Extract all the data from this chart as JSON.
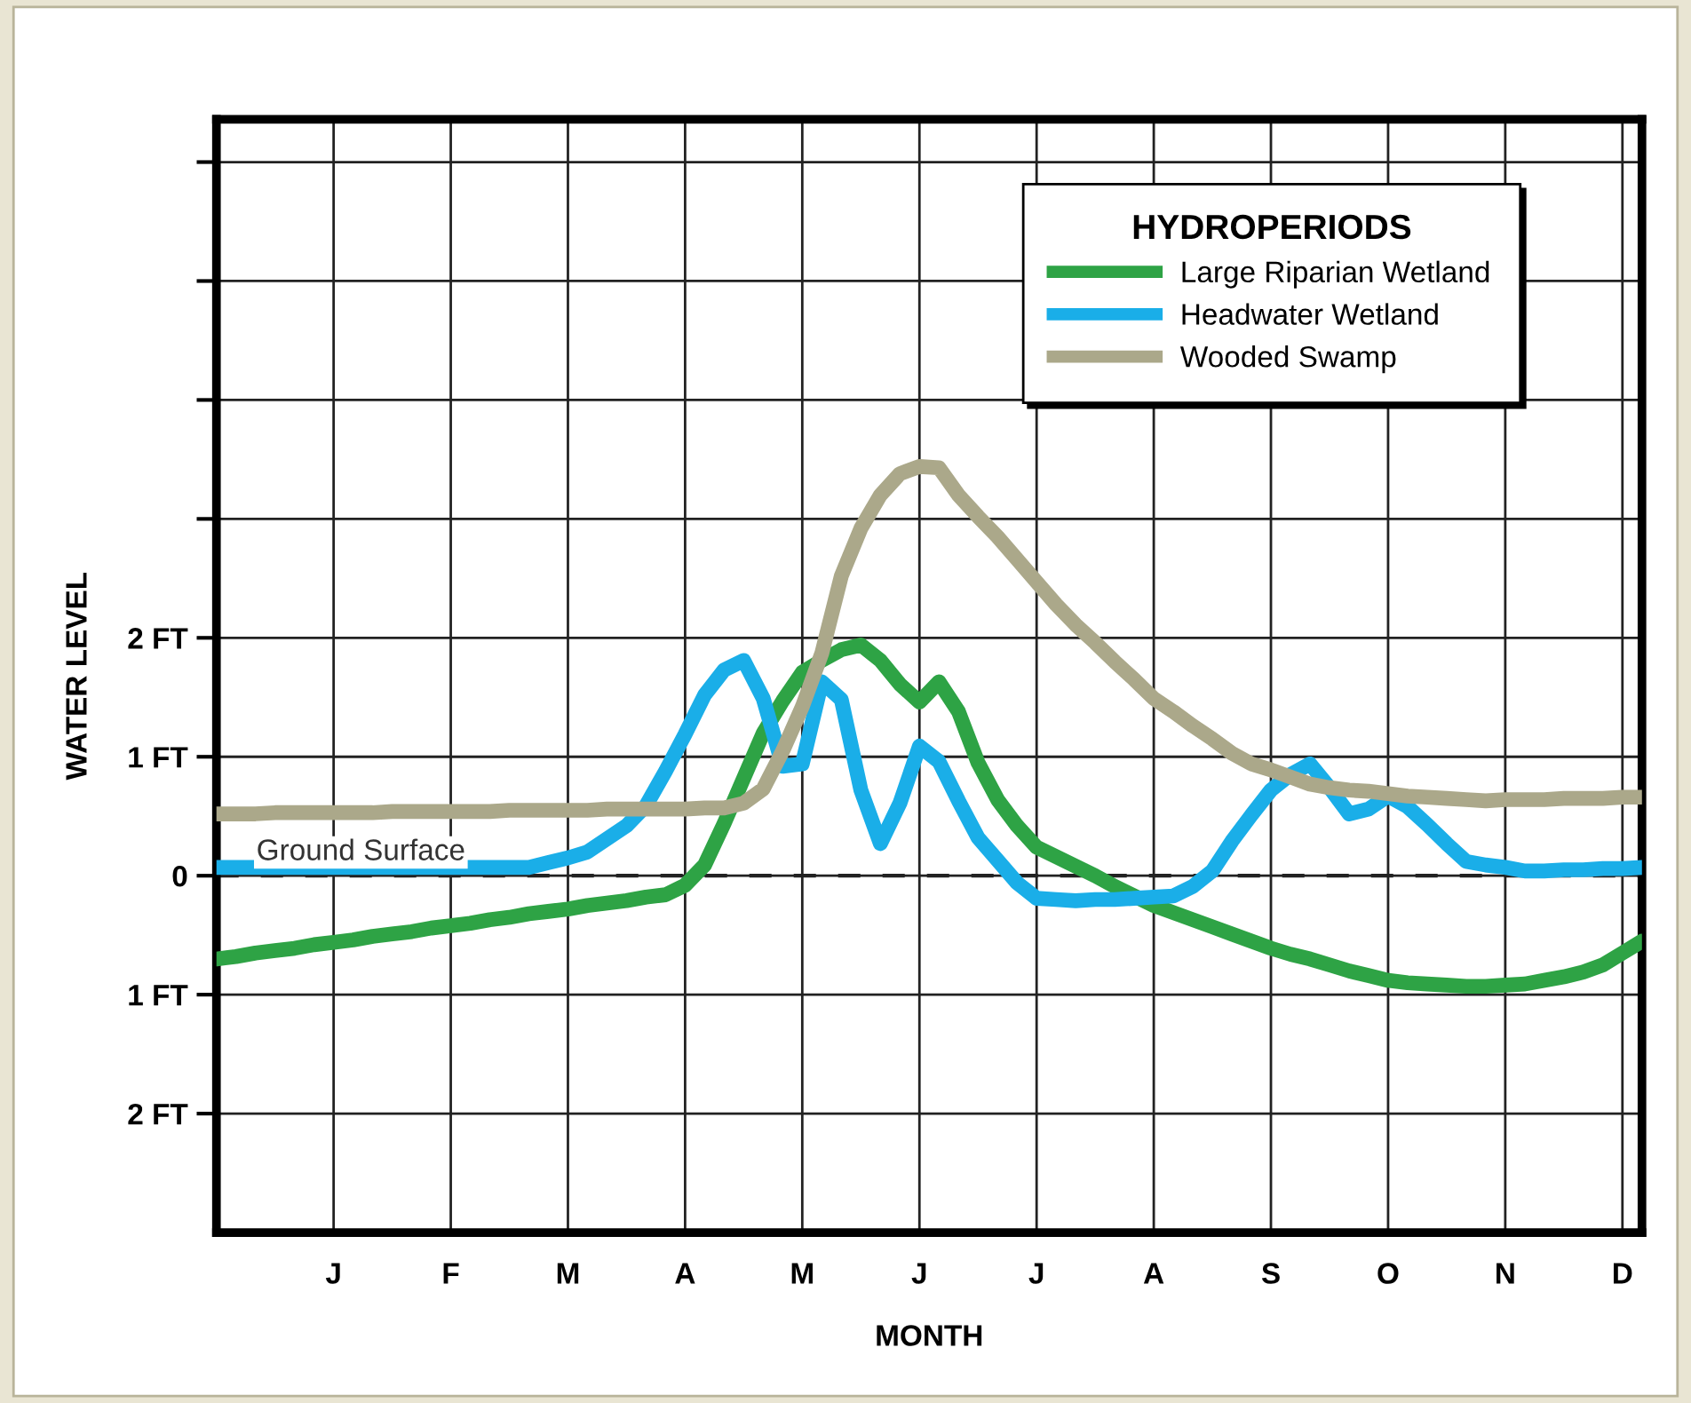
{
  "chart_data": {
    "type": "line",
    "xlabel": "MONTH",
    "ylabel": "WATER LEVEL",
    "legend_title": "HYDROPERIODS",
    "categories": [
      null,
      null,
      null,
      null,
      null,
      null,
      "J",
      null,
      null,
      null,
      null,
      null,
      "F",
      null,
      null,
      null,
      null,
      null,
      "M",
      null,
      null,
      null,
      null,
      null,
      "A",
      null,
      null,
      null,
      null,
      null,
      "M",
      null,
      null,
      null,
      null,
      null,
      "J",
      null,
      null,
      null,
      null,
      null,
      "J",
      null,
      null,
      null,
      null,
      null,
      "A",
      null,
      null,
      null,
      null,
      null,
      "S",
      null,
      null,
      null,
      null,
      null,
      "O",
      null,
      null,
      null,
      null,
      null,
      "N",
      null,
      null,
      null,
      null,
      null,
      "D",
      null
    ],
    "ylim": [
      -3.0,
      6.36
    ],
    "yticks": [
      {
        "value": -2,
        "label": "2 FT"
      },
      {
        "value": -1,
        "label": "1 FT"
      },
      {
        "value": 0,
        "label": "0"
      },
      {
        "value": 1,
        "label": "1 FT"
      },
      {
        "value": 2,
        "label": "2 FT"
      },
      {
        "value": 3,
        "label": null
      },
      {
        "value": 4,
        "label": null
      },
      {
        "value": 5,
        "label": null
      },
      {
        "value": 6,
        "label": null
      }
    ],
    "grid": true,
    "legend": "top right",
    "line_style": "solid",
    "marker": "none",
    "ref_lines": [
      {
        "axis": "y",
        "value": 0,
        "label": "Ground Surface",
        "line_style": "dashed",
        "color": "#222222"
      }
    ],
    "series": [
      {
        "name": "Large Riparian Wetland",
        "color": "#2ea345",
        "values": [
          -0.7,
          -0.68,
          -0.65,
          -0.63,
          -0.61,
          -0.58,
          -0.56,
          -0.54,
          -0.51,
          -0.49,
          -0.47,
          -0.44,
          -0.42,
          -0.4,
          -0.37,
          -0.35,
          -0.32,
          -0.3,
          -0.28,
          -0.25,
          -0.23,
          -0.21,
          -0.18,
          -0.16,
          -0.08,
          0.09,
          0.44,
          0.82,
          1.2,
          1.47,
          1.71,
          1.81,
          1.9,
          1.94,
          1.81,
          1.61,
          1.46,
          1.63,
          1.38,
          0.95,
          0.64,
          0.42,
          0.24,
          0.16,
          0.08,
          0,
          -0.09,
          -0.17,
          -0.25,
          -0.31,
          -0.37,
          -0.43,
          -0.49,
          -0.55,
          -0.61,
          -0.66,
          -0.7,
          -0.75,
          -0.8,
          -0.84,
          -0.88,
          -0.9,
          -0.91,
          -0.92,
          -0.93,
          -0.93,
          -0.92,
          -0.91,
          -0.88,
          -0.85,
          -0.81,
          -0.75,
          -0.65,
          -0.55
        ]
      },
      {
        "name": "Headwater Wetland",
        "color": "#1aaee8",
        "values": [
          0.07,
          0.07,
          0.07,
          0.07,
          0.07,
          0.07,
          0.07,
          0.07,
          0.07,
          0.07,
          0.07,
          0.07,
          0.07,
          0.07,
          0.07,
          0.07,
          0.07,
          0.11,
          0.15,
          0.2,
          0.31,
          0.42,
          0.59,
          0.88,
          1.19,
          1.52,
          1.73,
          1.81,
          1.49,
          0.92,
          0.94,
          1.63,
          1.48,
          0.72,
          0.27,
          0.61,
          1.09,
          0.96,
          0.63,
          0.32,
          0.13,
          -0.06,
          -0.19,
          -0.2,
          -0.21,
          -0.2,
          -0.2,
          -0.19,
          -0.18,
          -0.17,
          -0.09,
          0.04,
          0.29,
          0.51,
          0.72,
          0.85,
          0.94,
          0.74,
          0.52,
          0.56,
          0.67,
          0.58,
          0.43,
          0.27,
          0.12,
          0.09,
          0.07,
          0.04,
          0.04,
          0.05,
          0.05,
          0.06,
          0.06,
          0.07
        ]
      },
      {
        "name": "Wooded Swamp",
        "color": "#aba88a",
        "values": [
          0.52,
          0.52,
          0.52,
          0.53,
          0.53,
          0.53,
          0.53,
          0.53,
          0.53,
          0.54,
          0.54,
          0.54,
          0.54,
          0.54,
          0.54,
          0.55,
          0.55,
          0.55,
          0.55,
          0.55,
          0.56,
          0.56,
          0.56,
          0.56,
          0.56,
          0.57,
          0.57,
          0.61,
          0.73,
          1.05,
          1.42,
          1.87,
          2.52,
          2.92,
          3.2,
          3.38,
          3.44,
          3.43,
          3.2,
          3.02,
          2.85,
          2.66,
          2.47,
          2.28,
          2.11,
          1.96,
          1.8,
          1.65,
          1.49,
          1.38,
          1.26,
          1.15,
          1.03,
          0.94,
          0.89,
          0.83,
          0.77,
          0.74,
          0.72,
          0.71,
          0.69,
          0.67,
          0.66,
          0.65,
          0.64,
          0.63,
          0.64,
          0.64,
          0.64,
          0.65,
          0.65,
          0.65,
          0.66,
          0.66
        ]
      }
    ]
  }
}
